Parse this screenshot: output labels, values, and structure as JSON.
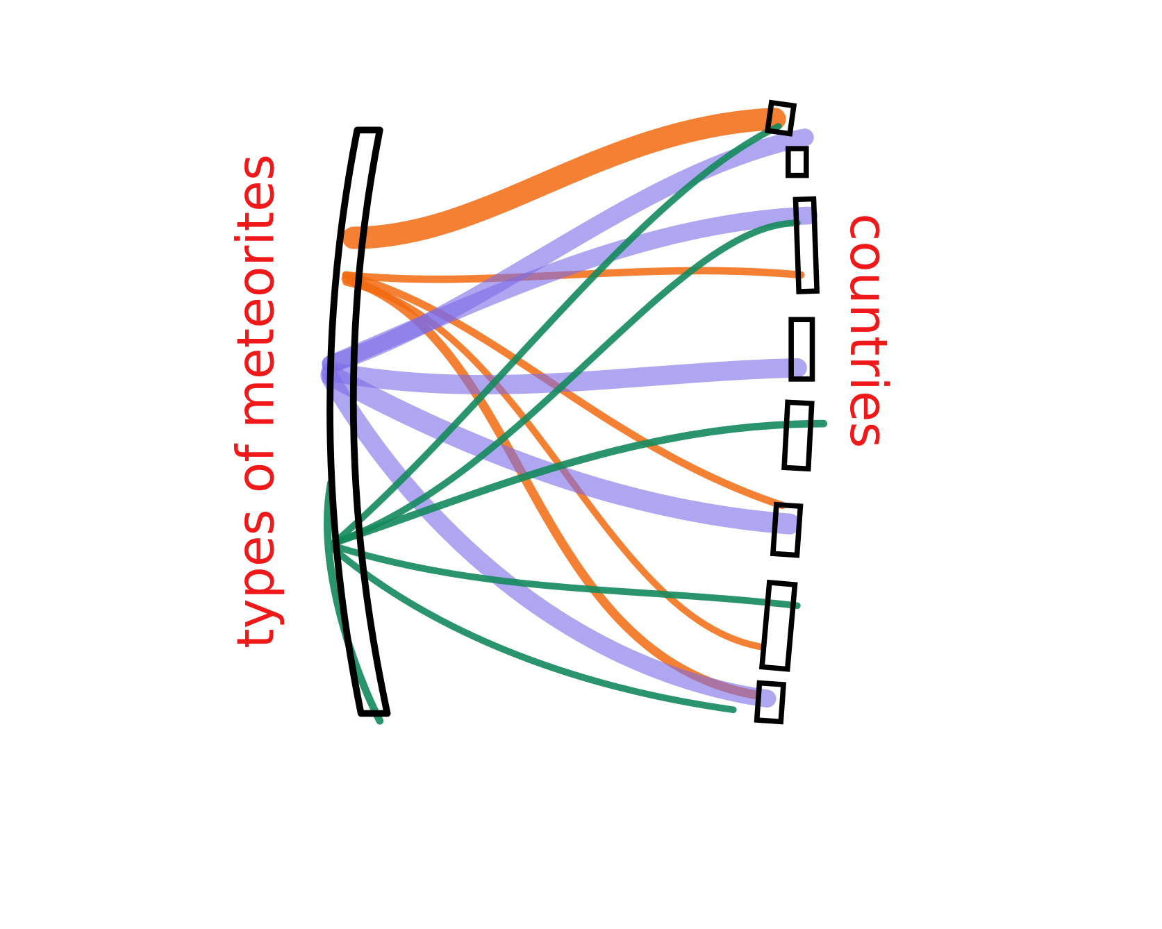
{
  "labels": {
    "left": "types of meteorites",
    "right": "countries"
  }
}
